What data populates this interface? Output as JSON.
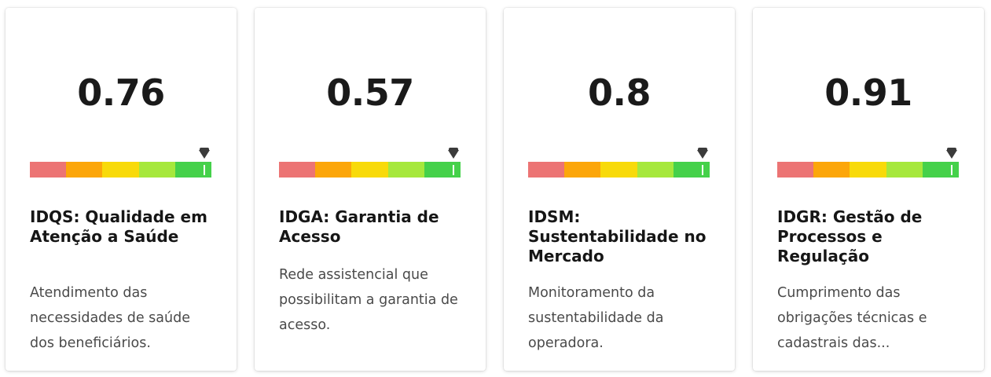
{
  "cards": [
    {
      "score": "0.76",
      "gauge_level": 0.96,
      "title": "IDQS: Qualidade em Atenção a Saúde",
      "description": "Atendimento das necessidades de saúde dos beneficiários."
    },
    {
      "score": "0.57",
      "gauge_level": 0.96,
      "title": "IDGA: Garantia de Acesso",
      "description": "Rede assistencial que possibilitam a garantia de acesso."
    },
    {
      "score": "0.8",
      "gauge_level": 0.96,
      "title": "IDSM: Sustentabilidade no Mercado",
      "description": "Monitoramento da sustentabilidade da operadora."
    },
    {
      "score": "0.91",
      "gauge_level": 0.96,
      "title": "IDGR: Gestão de Processos e Regulação",
      "description": "Cumprimento das obrigações técnicas e cadastrais das..."
    }
  ],
  "gauge_colors": [
    "#ec7474",
    "#fca60a",
    "#f8da0a",
    "#a6e83c",
    "#45d14a"
  ],
  "pointer_icon": "triangle-down-icon"
}
